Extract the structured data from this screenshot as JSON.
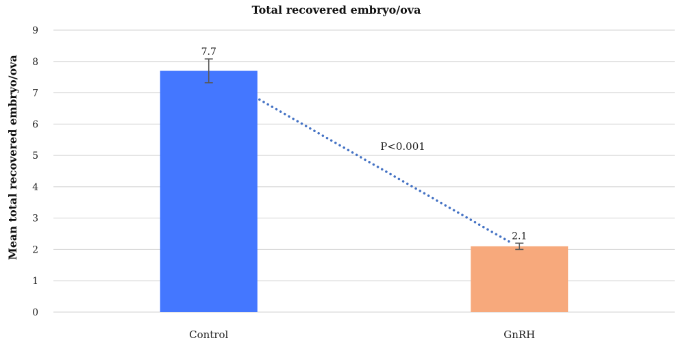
{
  "chart_data": {
    "type": "bar",
    "title": "Total recovered embryo/ova",
    "xlabel": "",
    "ylabel": "Mean total recovered embryo/ova",
    "categories": [
      "Control",
      "GnRH"
    ],
    "values": [
      7.7,
      2.1
    ],
    "data_labels": [
      "7.7",
      "2.1"
    ],
    "error_bars": [
      0.38,
      0.1
    ],
    "colors": [
      "#4477FF",
      "#F7A97C"
    ],
    "ylim": [
      0,
      9
    ],
    "yticks": [
      0,
      1,
      2,
      3,
      4,
      5,
      6,
      7,
      8,
      9
    ],
    "grid": true,
    "annotation": {
      "text": "P<0.001",
      "style": "dotted line connecting the two bars",
      "color": "#4472C4"
    }
  }
}
